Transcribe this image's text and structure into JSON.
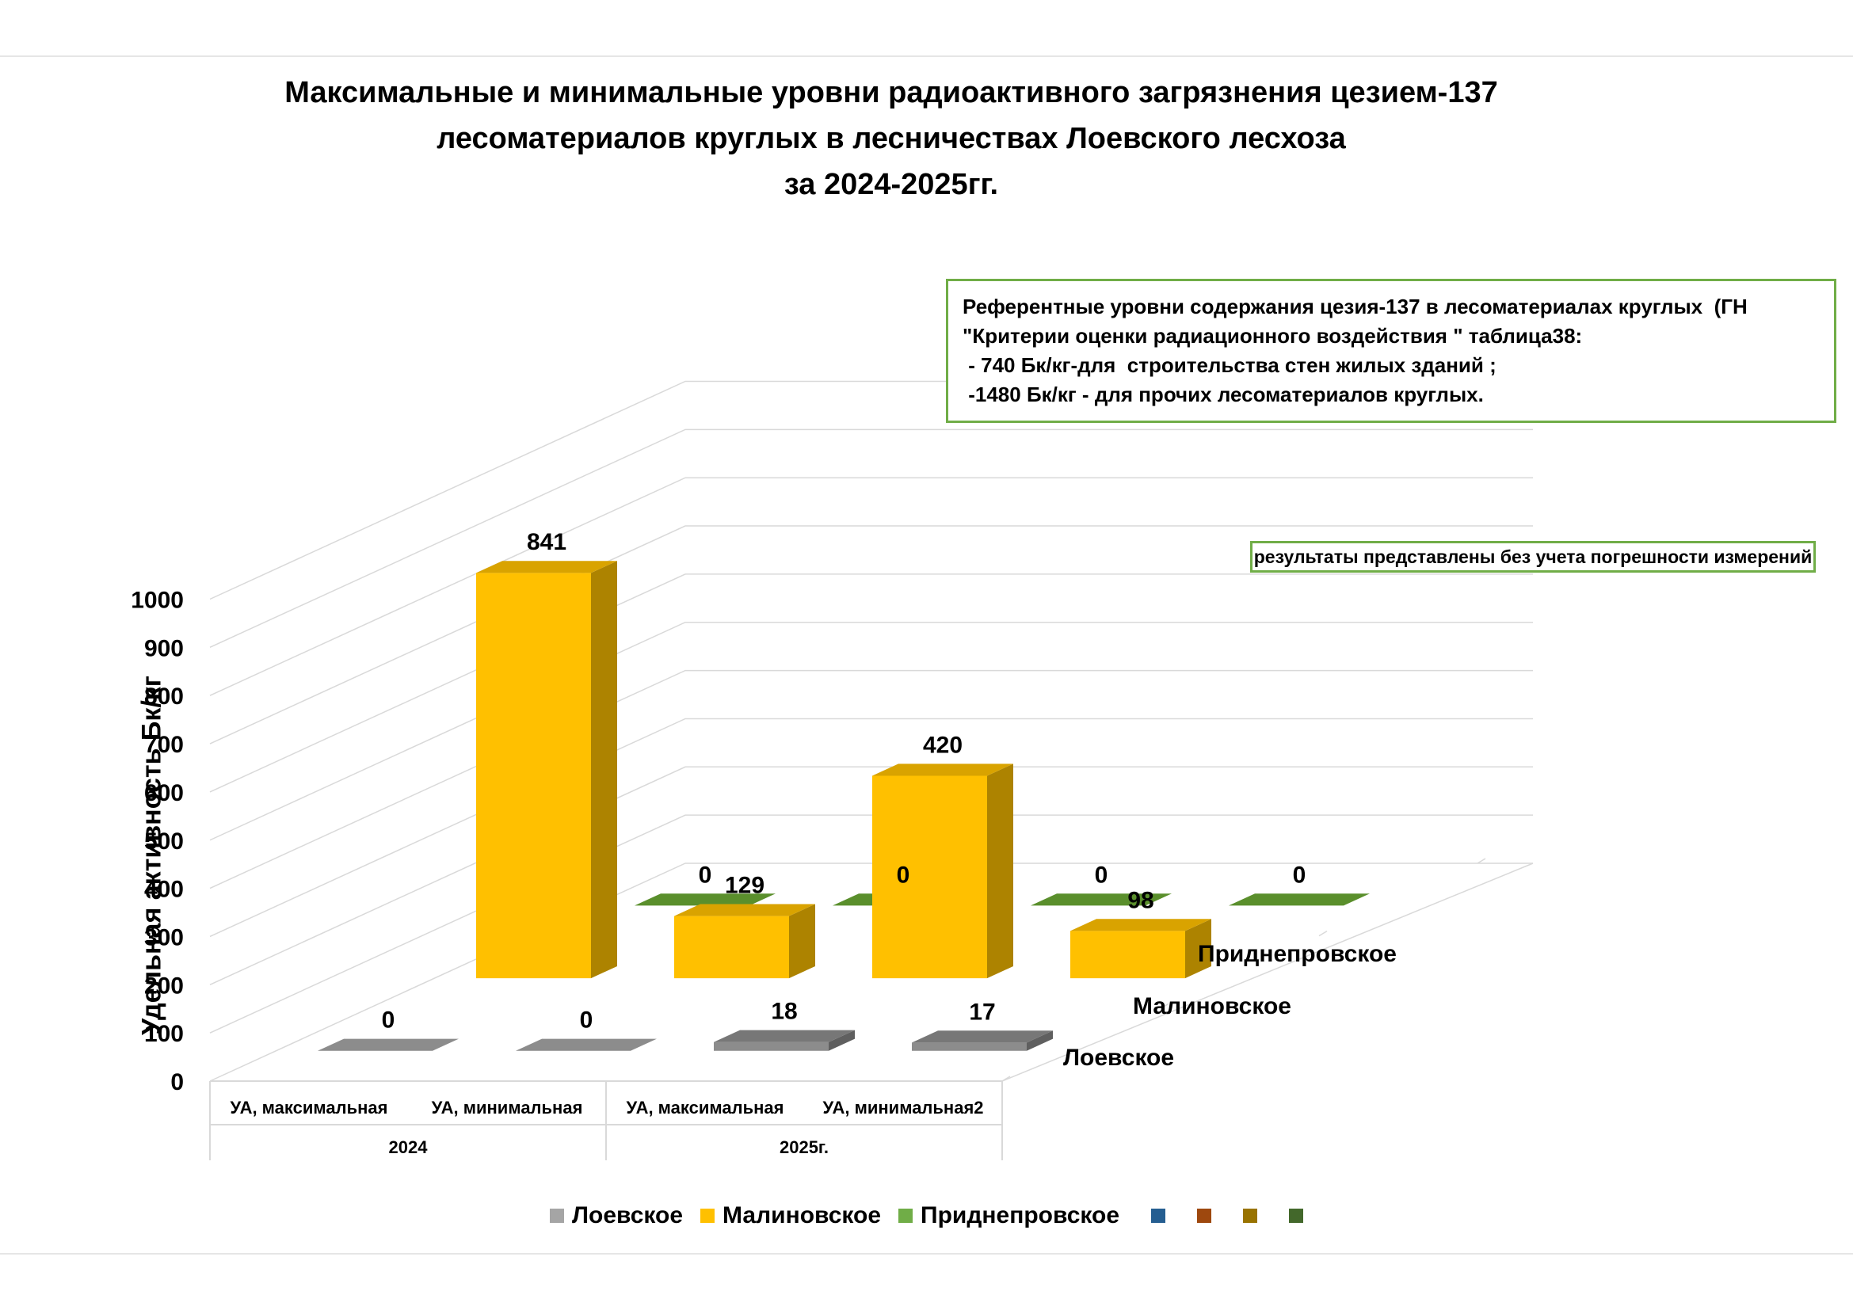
{
  "title": {
    "line1": "Максимальные и минимальные уровни радиоактивного загрязнения цезием-137",
    "line2": "лесоматериалов круглых в лесничествах Лоевского лесхоза",
    "line3": "за 2024-2025гг."
  },
  "note": {
    "line1": "Референтные уровни содержания цезия-137 в лесоматериалах круглых  (ГН",
    "line2": "\"Критерии оценки радиационного воздействия \" таблица38:",
    "line3": " - 740 Бк/кг-для  строительства стен жилых зданий ;",
    "line4": " -1480 Бк/кг - для прочих лесоматериалов круглых."
  },
  "note2": "результаты представлены без учета погрешности измерений",
  "chart_data": {
    "type": "bar",
    "title": "Максимальные и минимальные уровни радиоактивного загрязнения цезием-137 лесоматериалов круглых в лесничествах Лоевского лесхоза за 2024-2025гг.",
    "ylabel": "Удельная активность  Бк/кг",
    "xlabel": "",
    "ylim": [
      0,
      1000
    ],
    "yticks": [
      "0",
      "100",
      "200",
      "300",
      "400",
      "500",
      "600",
      "700",
      "800",
      "900",
      "1000"
    ],
    "categories": [
      "УА, максимальная",
      "УА, минимальная",
      "УА, максимальная",
      "УА, минимальная2"
    ],
    "groups": [
      {
        "label": "2024",
        "categories": [
          "УА, максимальная",
          "УА, минимальная"
        ]
      },
      {
        "label": "2025г.",
        "categories": [
          "УА, максимальная",
          "УА, минимальная2"
        ]
      }
    ],
    "series": [
      {
        "name": "Лоевское",
        "values": [
          0,
          0,
          18,
          17
        ],
        "color": "#8c8c8c"
      },
      {
        "name": "Малиновское",
        "values": [
          841,
          129,
          420,
          98
        ],
        "color": "#ffc000"
      },
      {
        "name": "Приднепровское",
        "values": [
          0,
          0,
          0,
          0
        ],
        "color": "#5a8f2c"
      }
    ],
    "legend": [
      {
        "name": "Лоевское",
        "color": "#a5a5a5"
      },
      {
        "name": "Малиновское",
        "color": "#ffc000"
      },
      {
        "name": "Приднепровское",
        "color": "#70ad47"
      },
      {
        "name": "",
        "color": "#255e91"
      },
      {
        "name": "",
        "color": "#9e480e"
      },
      {
        "name": "",
        "color": "#997300"
      },
      {
        "name": "",
        "color": "#43682b"
      }
    ],
    "legend_position": "bottom",
    "grid": true,
    "projection": "3d"
  }
}
